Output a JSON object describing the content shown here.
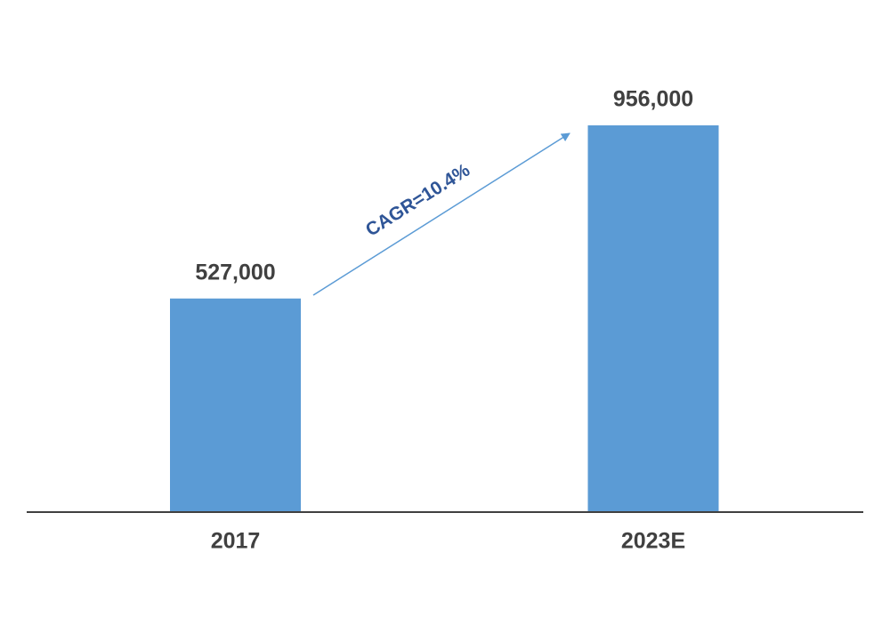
{
  "chart_data": {
    "type": "bar",
    "categories": [
      "2017",
      "2023E"
    ],
    "values": [
      527000,
      956000
    ],
    "value_labels": [
      "527,000",
      "956,000"
    ],
    "color": "#5b9bd5",
    "annotation": "CAGR=10.4%"
  }
}
